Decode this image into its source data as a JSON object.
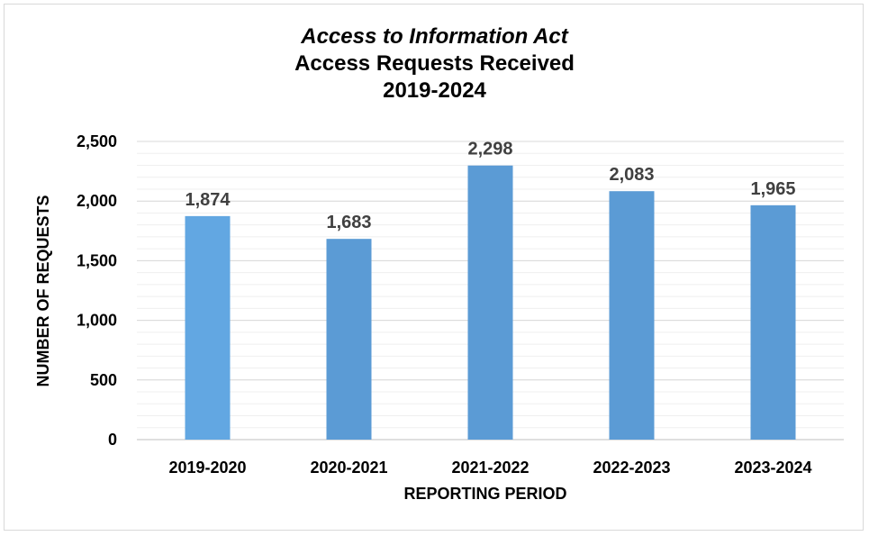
{
  "chart_data": {
    "type": "bar",
    "title_line1": "Access to Information Act",
    "title_line2": "Access Requests Received",
    "title_line3": "2019-2024",
    "xlabel": "REPORTING PERIOD",
    "ylabel": "NUMBER OF REQUESTS",
    "categories": [
      "2019-2020",
      "2020-2021",
      "2021-2022",
      "2022-2023",
      "2023-2024"
    ],
    "values": [
      1874,
      1683,
      2298,
      2083,
      1965
    ],
    "value_labels": [
      "1,874",
      "1,683",
      "2,298",
      "2,083",
      "1,965"
    ],
    "ylim": [
      0,
      2500
    ],
    "yticks": [
      0,
      500,
      1000,
      1500,
      2000,
      2500
    ],
    "ytick_labels": [
      "0",
      "500",
      "1,000",
      "1,500",
      "2,000",
      "2,500"
    ],
    "minor_gridlines": true,
    "legend": "none",
    "bar_colors": [
      "#62a7e2",
      "#5b9bd5",
      "#5b9bd5",
      "#5b9bd5",
      "#5b9bd5"
    ]
  }
}
